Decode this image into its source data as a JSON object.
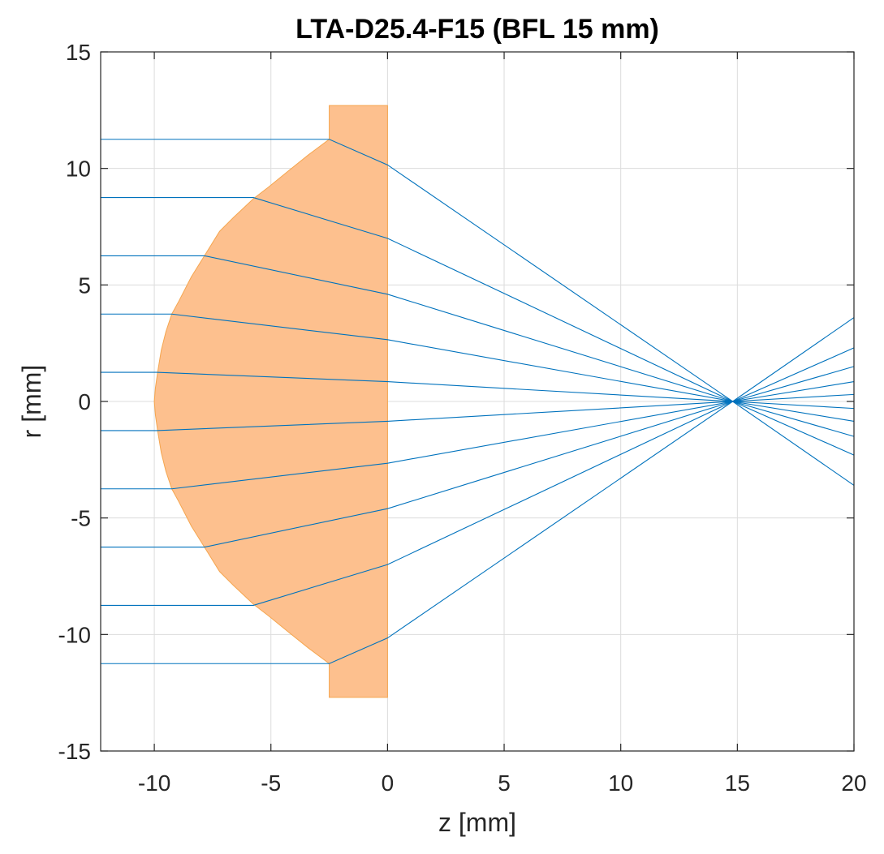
{
  "chart_data": {
    "type": "line",
    "title": "LTA-D25.4-F15 (BFL 15 mm)",
    "xlabel": "z [mm]",
    "ylabel": "r [mm]",
    "xlim": [
      -12.3,
      20
    ],
    "ylim": [
      -15,
      15
    ],
    "xticks": [
      -10,
      -5,
      0,
      5,
      10,
      15,
      20
    ],
    "yticks": [
      -15,
      -10,
      -5,
      0,
      5,
      10,
      15
    ],
    "grid": true,
    "colors": {
      "ray": "#0072bd",
      "lens_fill": "#fdc08e",
      "lens_edge": "#f5a54e"
    },
    "lens": {
      "name": "LTA-D25.4-F15",
      "outer_radius": 12.7,
      "flat_face_z": 0,
      "flange_front_z": -2.5,
      "vertex_z": -10.0,
      "profile": [
        [
          -2.5,
          11.25
        ],
        [
          -3.37,
          10.6
        ],
        [
          -4.23,
          9.91
        ],
        [
          -5.1,
          9.2
        ],
        [
          -5.75,
          8.7
        ],
        [
          -6.6,
          7.9
        ],
        [
          -7.2,
          7.3
        ],
        [
          -7.85,
          6.25
        ],
        [
          -8.41,
          5.35
        ],
        [
          -8.95,
          4.3
        ],
        [
          -9.25,
          3.75
        ],
        [
          -9.5,
          3.0
        ],
        [
          -9.7,
          2.2
        ],
        [
          -9.85,
          1.3
        ],
        [
          -9.95,
          0.6
        ],
        [
          -10.0,
          0.0
        ]
      ]
    },
    "rays": [
      {
        "r_in": 11.25,
        "z_curve": -2.5,
        "r_flat": 10.15,
        "r_exit": -3.6
      },
      {
        "r_in": 8.75,
        "z_curve": -5.75,
        "r_flat": 7.0,
        "r_exit": -2.3
      },
      {
        "r_in": 6.25,
        "z_curve": -7.85,
        "r_flat": 4.6,
        "r_exit": -1.5
      },
      {
        "r_in": 3.75,
        "z_curve": -9.25,
        "r_flat": 2.65,
        "r_exit": -0.85
      },
      {
        "r_in": 1.25,
        "z_curve": -9.9,
        "r_flat": 0.85,
        "r_exit": -0.3
      },
      {
        "r_in": -1.25,
        "z_curve": -9.9,
        "r_flat": -0.85,
        "r_exit": 0.3
      },
      {
        "r_in": -3.75,
        "z_curve": -9.25,
        "r_flat": -2.65,
        "r_exit": 0.85
      },
      {
        "r_in": -6.25,
        "z_curve": -7.85,
        "r_flat": -4.6,
        "r_exit": 1.5
      },
      {
        "r_in": -8.75,
        "z_curve": -5.75,
        "r_flat": -7.0,
        "r_exit": 2.3
      },
      {
        "r_in": -11.25,
        "z_curve": -2.5,
        "r_flat": -10.15,
        "r_exit": 3.6
      }
    ],
    "focus_z": 14.8,
    "ray_start_z": -12.3,
    "ray_end_z": 20
  }
}
